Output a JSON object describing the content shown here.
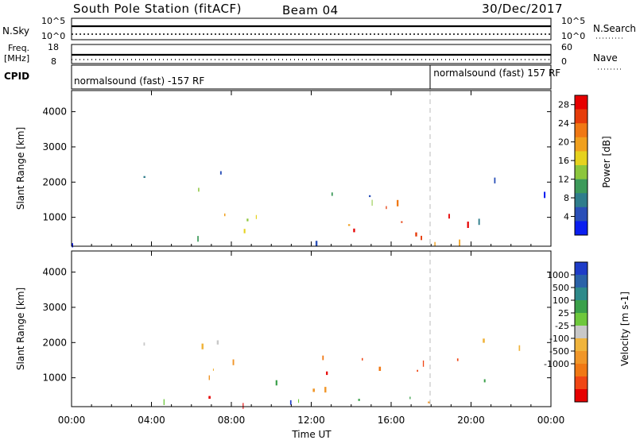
{
  "header": {
    "station": "South Pole Station (fitACF)",
    "beam": "Beam 04",
    "date": "30/Dec/2017"
  },
  "top_panels": {
    "nsky_label": "N.Sky",
    "nsky_ticks": [
      "10^5",
      "10^0"
    ],
    "nsearch_label": "N.Search",
    "nsearch_ticks": [
      "10^5",
      "10^0"
    ],
    "freq_label": "Freq.",
    "freq_unit": "[MHz]",
    "freq_ticks": [
      "18",
      "8"
    ],
    "nave_label": "Nave",
    "nave_ticks": [
      "60",
      "0"
    ],
    "cpid_label": "CPID",
    "cpid_segments": [
      {
        "text": "normalsound (fast) -157 RF",
        "start_hour": 0
      },
      {
        "text": "normalsound (fast) 157 RF",
        "start_hour": 18
      }
    ]
  },
  "time_axis": {
    "label": "Time UT",
    "ticks": [
      "00:00",
      "04:00",
      "08:00",
      "12:00",
      "16:00",
      "20:00",
      "00:00"
    ],
    "tick_hours": [
      0,
      4,
      8,
      12,
      16,
      20,
      24
    ]
  },
  "chart_data": [
    {
      "type": "heatmap",
      "name": "power",
      "ylabel": "Slant Range [km]",
      "yticks": [
        1000,
        2000,
        3000,
        4000
      ],
      "ylim": [
        180,
        4600
      ],
      "xlim": [
        0,
        24
      ],
      "colorbar": {
        "label": "Power [dB]",
        "ticks": [
          "4",
          "8",
          "12",
          "16",
          "20",
          "24",
          "28"
        ],
        "range": [
          0,
          30
        ],
        "colors": [
          "#0a1ef0",
          "#2a4fb8",
          "#2f7d8c",
          "#3d9a5a",
          "#8cc63c",
          "#e6d21e",
          "#f0a01e",
          "#f07814",
          "#e63c0a",
          "#e60000"
        ]
      }
    },
    {
      "type": "heatmap",
      "name": "velocity",
      "ylabel": "Slant Range [km]",
      "yticks": [
        1000,
        2000,
        3000,
        4000
      ],
      "ylim": [
        180,
        4600
      ],
      "xlim": [
        0,
        24
      ],
      "colorbar": {
        "label": "Velocity [m s-1]",
        "ticks": [
          "1000",
          "500",
          "100",
          "25",
          "-25",
          "-100",
          "-500",
          "-1000"
        ],
        "colors": [
          "#1e3cc8",
          "#2a62a8",
          "#2e8a8a",
          "#3aa04a",
          "#6ec83c",
          "#c8c8c8",
          "#f0b43c",
          "#f09628",
          "#f07814",
          "#f04614",
          "#e60000"
        ]
      }
    }
  ]
}
